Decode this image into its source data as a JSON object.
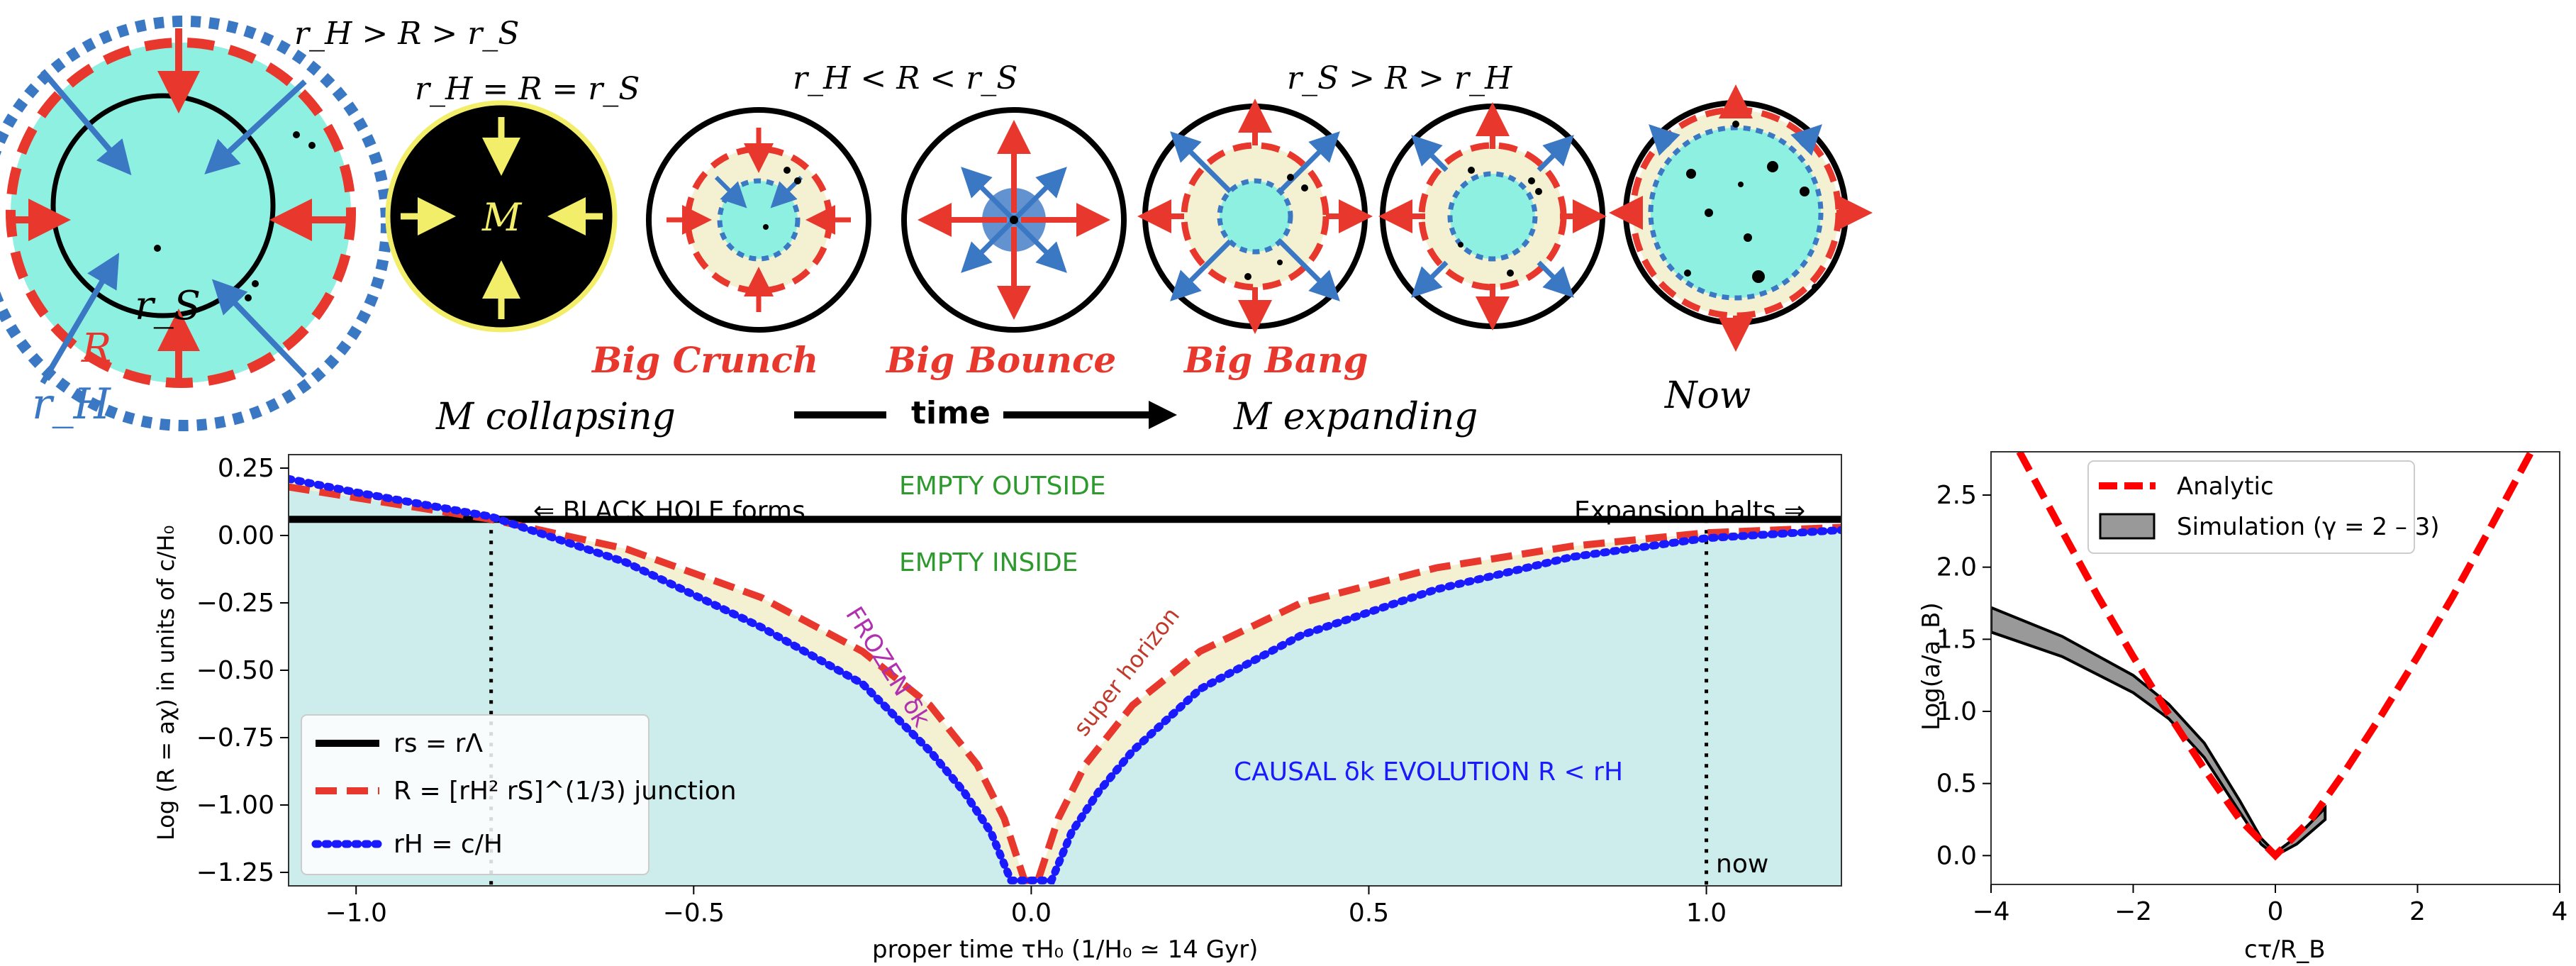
{
  "top_panel": {
    "cond_outer": "r_H > R > r_S",
    "cond_bh": "r_H = R = r_S",
    "cond_crunch": "r_H < R < r_S",
    "cond_bang": "r_S > R > r_H",
    "label_rs": "r_S",
    "label_R": "R",
    "label_rH": "r_H",
    "label_M": "M",
    "event_crunch": "Big Crunch",
    "event_bounce": "Big Bounce",
    "event_bang": "Big Bang",
    "phase_collapsing": "M collapsing",
    "phase_expanding": "M expanding",
    "time_label": "time",
    "now_label": "Now"
  },
  "main_chart": {
    "colors": {
      "rs": "#000000",
      "R": "#e8372c",
      "rH": "#1a1aff",
      "region_fill": "#cdecec",
      "band_fill": "#f4f0d2",
      "text_green": "#2e9a2e",
      "text_purple": "#b030b0",
      "text_red": "#c0392b",
      "text_blue": "#1a1aff"
    },
    "xlabel": "proper time τH₀ (1/H₀ ≃ 14 Gyr)",
    "ylabel": "Log (R = aχ)  in units of c/H₀",
    "xlim": [
      -1.1,
      1.2
    ],
    "ylim": [
      -1.3,
      0.3
    ],
    "xticks": [
      "−1.0",
      "−0.5",
      "0.0",
      "0.5",
      "1.0"
    ],
    "xtick_values": [
      -1.0,
      -0.5,
      0.0,
      0.5,
      1.0
    ],
    "yticks": [
      "0.25",
      "0.00",
      "−0.25",
      "−0.50",
      "−0.75",
      "−1.00",
      "−1.25"
    ],
    "ytick_values": [
      0.25,
      0.0,
      -0.25,
      -0.5,
      -0.75,
      -1.0,
      -1.25
    ],
    "annotations": {
      "empty_outside": "EMPTY OUTSIDE",
      "empty_inside": "EMPTY INSIDE",
      "bh_forms": "⇐  BLACK HOLE forms",
      "exp_halts": "Expansion halts  ⇒",
      "frozen": "FROZEN δk",
      "super_horizon": "super horizon",
      "causal": "CAUSAL δk EVOLUTION R < rH",
      "now": "now"
    },
    "legend": {
      "rs": "rs = rΛ",
      "R": "R = [rH² rS]^(1/3) junction",
      "rH": "rH = c/H"
    }
  },
  "chart_data": [
    {
      "type": "line",
      "xlabel": "proper time τH₀ (1/H₀ ≃ 14 Gyr)",
      "ylabel": "Log (R = aχ)  in units of c/H₀",
      "xlim": [
        -1.1,
        1.2
      ],
      "ylim": [
        -1.3,
        0.3
      ],
      "legend_position": "lower-left",
      "vertical_lines": [
        -0.8,
        1.0
      ],
      "series": [
        {
          "name": "rs = rΛ",
          "style": "solid",
          "x": [
            -1.1,
            1.2
          ],
          "y": [
            0.06,
            0.06
          ]
        },
        {
          "name": "R = [rH² rS]^(1/3) junction",
          "style": "dashed",
          "x": [
            -1.1,
            -1.0,
            -0.8,
            -0.6,
            -0.4,
            -0.25,
            -0.15,
            -0.08,
            -0.04,
            -0.01,
            0.01,
            0.04,
            0.08,
            0.15,
            0.25,
            0.4,
            0.6,
            0.8,
            1.0,
            1.2
          ],
          "y": [
            0.18,
            0.14,
            0.06,
            -0.05,
            -0.23,
            -0.43,
            -0.63,
            -0.85,
            -1.05,
            -1.28,
            -1.28,
            -1.05,
            -0.85,
            -0.63,
            -0.43,
            -0.25,
            -0.12,
            -0.04,
            0.01,
            0.03
          ]
        },
        {
          "name": "rH = c/H",
          "style": "dotted",
          "x": [
            -1.1,
            -1.0,
            -0.8,
            -0.6,
            -0.4,
            -0.25,
            -0.15,
            -0.1,
            -0.06,
            -0.03,
            0.03,
            0.06,
            0.1,
            0.15,
            0.25,
            0.4,
            0.6,
            0.8,
            1.0,
            1.2
          ],
          "y": [
            0.21,
            0.16,
            0.07,
            -0.1,
            -0.34,
            -0.55,
            -0.8,
            -0.95,
            -1.1,
            -1.28,
            -1.28,
            -1.1,
            -0.95,
            -0.8,
            -0.57,
            -0.37,
            -0.2,
            -0.08,
            -0.01,
            0.02
          ]
        }
      ]
    },
    {
      "type": "line",
      "xlabel": "cτ/R_B",
      "ylabel": "Log(a/a_B)",
      "xlim": [
        -4,
        4
      ],
      "ylim": [
        -0.2,
        2.8
      ],
      "xticks": [
        -4,
        -2,
        0,
        2,
        4
      ],
      "yticks": [
        0.0,
        0.5,
        1.0,
        1.5,
        2.0,
        2.5
      ],
      "legend_position": "top",
      "series": [
        {
          "name": "Analytic",
          "style": "dashed",
          "x": [
            -3.6,
            -3,
            -2.5,
            -2,
            -1.5,
            -1,
            -0.5,
            0,
            0.5,
            1,
            1.5,
            2,
            2.5,
            3,
            3.6
          ],
          "y": [
            2.8,
            2.25,
            1.8,
            1.38,
            0.98,
            0.6,
            0.25,
            0.0,
            0.25,
            0.6,
            0.98,
            1.38,
            1.8,
            2.25,
            2.8
          ]
        },
        {
          "name": "Simulation (γ = 2 – 3)",
          "style": "band",
          "x": [
            -4,
            -3,
            -2,
            -1.5,
            -1,
            -0.5,
            -0.2,
            0,
            0.3,
            0.7
          ],
          "y_low": [
            1.55,
            1.38,
            1.13,
            0.95,
            0.68,
            0.3,
            0.08,
            0.0,
            0.08,
            0.25
          ],
          "y_high": [
            1.72,
            1.52,
            1.25,
            1.05,
            0.78,
            0.38,
            0.12,
            0.02,
            0.13,
            0.33
          ]
        }
      ]
    }
  ],
  "right_chart": {
    "xlabel": "cτ/R_B",
    "ylabel": "Log(a/a_B)",
    "xticks": [
      "−4",
      "−2",
      "0",
      "2",
      "4"
    ],
    "yticks": [
      "0.0",
      "0.5",
      "1.0",
      "1.5",
      "2.0",
      "2.5"
    ],
    "legend": {
      "analytic": "Analytic",
      "simulation": "Simulation (γ = 2 – 3)"
    },
    "colors": {
      "analytic": "#ff0000",
      "band": "#999999"
    }
  }
}
